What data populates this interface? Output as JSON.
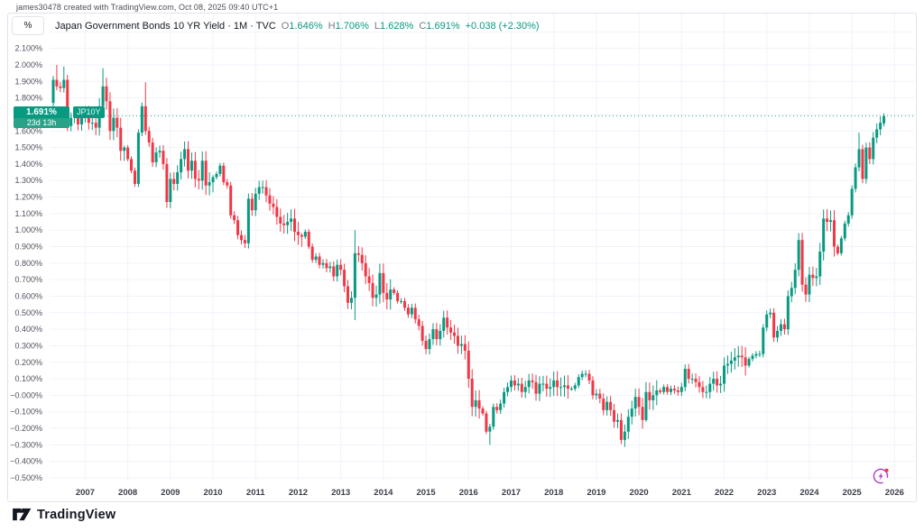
{
  "attribution": "james30478 created with TradingView.com, Oct 08, 2025 09:40 UTC+1",
  "header": {
    "scale_button": "%",
    "title": "Japan Government Bonds 10 YR Yield · 1M · TVC",
    "ohlc": {
      "o_label": "O",
      "o": "1.646%",
      "h_label": "H",
      "h": "1.706%",
      "l_label": "L",
      "l": "1.628%",
      "c_label": "C",
      "c": "1.691%",
      "change": "+0.038 (+2.30%)"
    }
  },
  "price_label": {
    "price": "1.691%",
    "countdown": "23d 13h",
    "symbol": "JP10Y"
  },
  "logo": {
    "text": "TradingView"
  },
  "icons": {
    "flash": "lightning-bolt",
    "flash_color": "#b039c8",
    "flash_dot": "#f23645"
  },
  "colors": {
    "up": "#089981",
    "down": "#f23645",
    "grid": "#f0f3fa",
    "border": "#e0e3eb",
    "axis_text": "#50535e",
    "title_text": "#131722",
    "muted_text": "#787b86",
    "current_price_line": "#089981"
  },
  "chart_data": {
    "type": "candlestick",
    "title": "Japan Government Bonds 10 YR Yield",
    "symbol": "JP10Y",
    "interval": "1M",
    "start_month": "2006-04",
    "end_month": "2025-10",
    "current_price": 1.691,
    "last_candle": {
      "o": 1.646,
      "h": 1.706,
      "l": 1.628,
      "c": 1.691
    },
    "first_open": 1.77,
    "ylim": [
      -0.5,
      2.1
    ],
    "grid": true,
    "closes": [
      1.91,
      1.87,
      1.86,
      1.91,
      1.63,
      1.68,
      1.7,
      1.64,
      1.69,
      1.71,
      1.65,
      1.65,
      1.62,
      1.75,
      1.87,
      1.78,
      1.6,
      1.68,
      1.62,
      1.48,
      1.5,
      1.43,
      1.36,
      1.28,
      1.59,
      1.75,
      1.6,
      1.53,
      1.41,
      1.47,
      1.48,
      1.4,
      1.17,
      1.31,
      1.28,
      1.35,
      1.43,
      1.49,
      1.36,
      1.42,
      1.31,
      1.3,
      1.42,
      1.27,
      1.29,
      1.32,
      1.34,
      1.39,
      1.29,
      1.27,
      1.09,
      1.06,
      0.97,
      0.94,
      0.92,
      1.19,
      1.12,
      1.22,
      1.26,
      1.26,
      1.21,
      1.16,
      1.14,
      1.08,
      1.04,
      1.03,
      1.05,
      1.07,
      0.99,
      0.97,
      0.96,
      0.99,
      0.9,
      0.82,
      0.84,
      0.79,
      0.8,
      0.77,
      0.78,
      0.72,
      0.79,
      0.76,
      0.66,
      0.56,
      0.59,
      0.86,
      0.85,
      0.8,
      0.72,
      0.68,
      0.59,
      0.61,
      0.74,
      0.62,
      0.58,
      0.64,
      0.62,
      0.57,
      0.57,
      0.53,
      0.49,
      0.53,
      0.46,
      0.42,
      0.33,
      0.28,
      0.34,
      0.4,
      0.34,
      0.39,
      0.47,
      0.41,
      0.38,
      0.36,
      0.3,
      0.31,
      0.27,
      0.1,
      -0.07,
      -0.03,
      -0.08,
      -0.11,
      -0.22,
      -0.19,
      -0.07,
      -0.09,
      -0.05,
      0.02,
      0.05,
      0.09,
      0.06,
      0.07,
      0.02,
      0.05,
      0.09,
      0.08,
      0.01,
      0.07,
      0.07,
      0.04,
      0.05,
      0.09,
      0.05,
      0.05,
      0.06,
      0.04,
      0.04,
      0.06,
      0.11,
      0.13,
      0.13,
      0.09,
      0.0,
      0.01,
      -0.02,
      -0.09,
      -0.04,
      -0.09,
      -0.16,
      -0.15,
      -0.27,
      -0.22,
      -0.13,
      -0.08,
      -0.01,
      -0.07,
      -0.15,
      0.02,
      -0.03,
      0.0,
      0.03,
      0.02,
      0.05,
      0.02,
      0.04,
      0.03,
      0.02,
      0.05,
      0.16,
      0.1,
      0.1,
      0.08,
      0.05,
      0.02,
      0.02,
      0.07,
      0.1,
      0.06,
      0.07,
      0.18,
      0.19,
      0.21,
      0.23,
      0.24,
      0.23,
      0.18,
      0.22,
      0.24,
      0.25,
      0.25,
      0.41,
      0.49,
      0.5,
      0.35,
      0.39,
      0.43,
      0.4,
      0.6,
      0.65,
      0.76,
      0.94,
      0.67,
      0.61,
      0.73,
      0.71,
      0.72,
      0.87,
      1.07,
      1.05,
      1.06,
      0.9,
      0.86,
      0.95,
      1.04,
      1.09,
      1.25,
      1.38,
      1.49,
      1.31,
      1.5,
      1.43,
      1.56,
      1.61,
      1.65,
      1.691
    ],
    "wick_overrides": {
      "1": {
        "h": 2.0
      },
      "3": {
        "h": 1.99
      },
      "14": {
        "h": 1.98
      },
      "26": {
        "h": 1.895
      },
      "85": {
        "h": 1.0,
        "l": 0.455
      },
      "123": {
        "l": -0.3
      },
      "160": {
        "l": -0.295
      },
      "167": {
        "h": 0.08,
        "l": -0.16
      },
      "227": {
        "h": 1.59
      },
      "234": {
        "o": 1.646,
        "h": 1.706,
        "l": 1.628,
        "c": 1.691
      }
    },
    "y_ticks": [
      {
        "v": 2.1,
        "l": "2.100%"
      },
      {
        "v": 2.0,
        "l": "2.000%"
      },
      {
        "v": 1.9,
        "l": "1.900%"
      },
      {
        "v": 1.8,
        "l": "1.800%"
      },
      {
        "v": 1.7,
        "l": "1.700%"
      },
      {
        "v": 1.6,
        "l": "1.600%"
      },
      {
        "v": 1.5,
        "l": "1.500%"
      },
      {
        "v": 1.4,
        "l": "1.400%"
      },
      {
        "v": 1.3,
        "l": "1.300%"
      },
      {
        "v": 1.2,
        "l": "1.200%"
      },
      {
        "v": 1.1,
        "l": "1.100%"
      },
      {
        "v": 1.0,
        "l": "1.000%"
      },
      {
        "v": 0.9,
        "l": "0.900%"
      },
      {
        "v": 0.8,
        "l": "0.800%"
      },
      {
        "v": 0.7,
        "l": "0.700%"
      },
      {
        "v": 0.6,
        "l": "0.600%"
      },
      {
        "v": 0.5,
        "l": "0.500%"
      },
      {
        "v": 0.4,
        "l": "0.400%"
      },
      {
        "v": 0.3,
        "l": "0.300%"
      },
      {
        "v": 0.2,
        "l": "0.200%"
      },
      {
        "v": 0.1,
        "l": "0.100%"
      },
      {
        "v": 0.0,
        "l": "−0.000%"
      },
      {
        "v": -0.1,
        "l": "−0.100%"
      },
      {
        "v": -0.2,
        "l": "−0.200%"
      },
      {
        "v": -0.3,
        "l": "−0.300%"
      },
      {
        "v": -0.4,
        "l": "−0.400%"
      },
      {
        "v": -0.5,
        "l": "−0.500%"
      }
    ],
    "x_ticks": [
      {
        "year": 2007,
        "l": "2007"
      },
      {
        "year": 2008,
        "l": "2008"
      },
      {
        "year": 2009,
        "l": "2009"
      },
      {
        "year": 2010,
        "l": "2010"
      },
      {
        "year": 2011,
        "l": "2011"
      },
      {
        "year": 2012,
        "l": "2012"
      },
      {
        "year": 2013,
        "l": "2013"
      },
      {
        "year": 2014,
        "l": "2014"
      },
      {
        "year": 2015,
        "l": "2015"
      },
      {
        "year": 2016,
        "l": "2016"
      },
      {
        "year": 2017,
        "l": "2017"
      },
      {
        "year": 2018,
        "l": "2018"
      },
      {
        "year": 2019,
        "l": "2019"
      },
      {
        "year": 2020,
        "l": "2020"
      },
      {
        "year": 2021,
        "l": "2021"
      },
      {
        "year": 2022,
        "l": "2022"
      },
      {
        "year": 2023,
        "l": "2023"
      },
      {
        "year": 2024,
        "l": "2024"
      },
      {
        "year": 2025,
        "l": "2025"
      },
      {
        "year": 2026,
        "l": "2026"
      }
    ]
  }
}
